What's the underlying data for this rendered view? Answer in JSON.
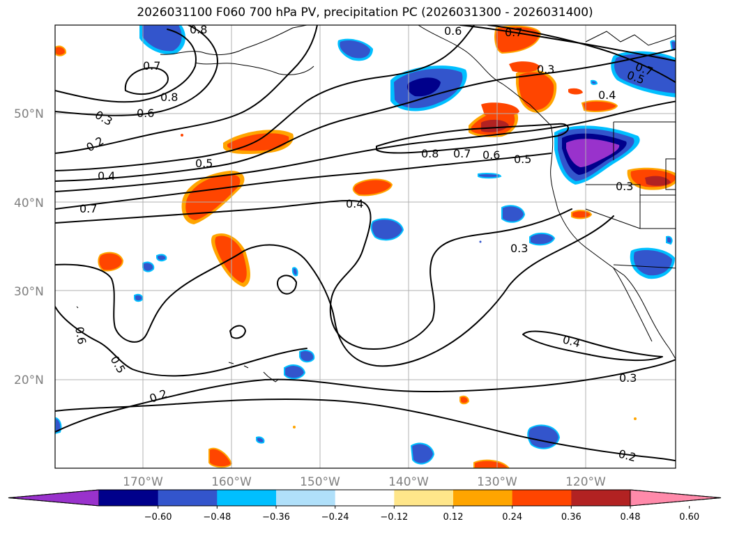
{
  "title": "2026031100 F060 700 hPa PV, precipitation PC (2026031300 - 2026031400)",
  "lat_labels": [
    "50°N",
    "40°N",
    "30°N",
    "20°N"
  ],
  "lon_labels": [
    "170°W",
    "160°W",
    "150°W",
    "140°W",
    "130°W",
    "120°W"
  ],
  "contour_labels": [
    "0.8",
    "0.7",
    "0.8",
    "0.6",
    "0.3",
    "0.2",
    "0.5",
    "0.4",
    "0.7",
    "0.8",
    "0.7",
    "0.6",
    "0.5",
    "0.4",
    "0.3",
    "0.6",
    "0.7",
    "0.5",
    "0.4",
    "0.3",
    "0.3",
    "0.6",
    "0.5",
    "0.2",
    "0.4",
    "0.3",
    "0.2"
  ],
  "colorbar": {
    "labels": [
      "−0.60",
      "−0.48",
      "−0.36",
      "−0.24",
      "−0.12",
      "0.12",
      "0.24",
      "0.36",
      "0.48",
      "0.60"
    ],
    "colors": [
      "#9932cc",
      "#00008b",
      "#3355cc",
      "#00bfff",
      "#b0e0fa",
      "#ffffff",
      "#ffe68a",
      "#ffa500",
      "#ff4500",
      "#b22222",
      "#ff8aaa"
    ]
  },
  "map_extent": {
    "lon_min": -180,
    "lon_max": -110,
    "lat_min": 10,
    "lat_max": 60
  }
}
